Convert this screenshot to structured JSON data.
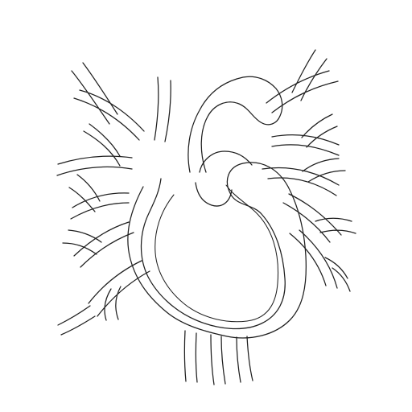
{
  "illustration": {
    "subject": "anatomical-heart-outline",
    "stroke_color": "#1f1f1f",
    "background_color": "#ffffff"
  }
}
